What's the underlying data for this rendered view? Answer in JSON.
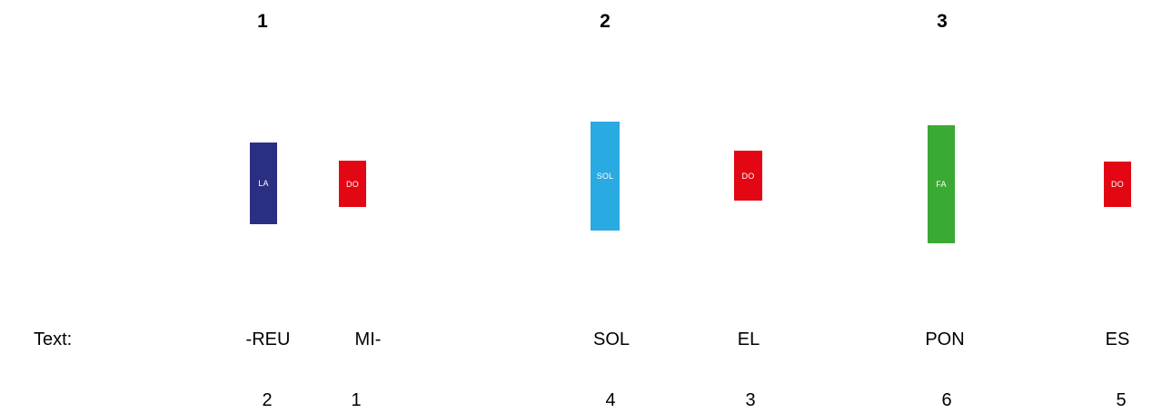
{
  "groups": [
    {
      "number": "1"
    },
    {
      "number": "2"
    },
    {
      "number": "3"
    }
  ],
  "notes": [
    {
      "label": "LA",
      "color": "#2b2f82"
    },
    {
      "label": "DO",
      "color": "#e30613"
    },
    {
      "label": "SOL",
      "color": "#29aae2"
    },
    {
      "label": "DO",
      "color": "#e30613"
    },
    {
      "label": "FA",
      "color": "#3aaa35"
    },
    {
      "label": "DO",
      "color": "#e30613"
    }
  ],
  "text_label": "Text:",
  "syllables": [
    {
      "text": "-REU",
      "order": "2"
    },
    {
      "text": "MI-",
      "order": "1"
    },
    {
      "text": "SOL",
      "order": "4"
    },
    {
      "text": "EL",
      "order": "3"
    },
    {
      "text": "PON",
      "order": "6"
    },
    {
      "text": "ES",
      "order": "5"
    }
  ]
}
